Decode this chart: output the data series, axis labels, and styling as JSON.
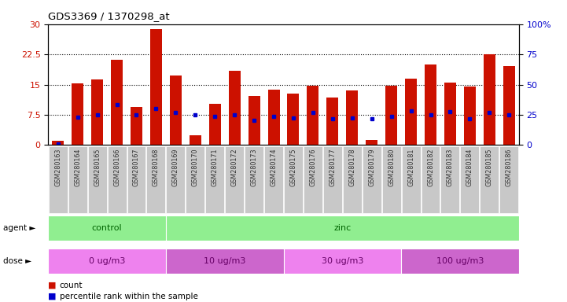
{
  "title": "GDS3369 / 1370298_at",
  "samples": [
    "GSM280163",
    "GSM280164",
    "GSM280165",
    "GSM280166",
    "GSM280167",
    "GSM280168",
    "GSM280169",
    "GSM280170",
    "GSM280171",
    "GSM280172",
    "GSM280173",
    "GSM280174",
    "GSM280175",
    "GSM280176",
    "GSM280177",
    "GSM280178",
    "GSM280179",
    "GSM280180",
    "GSM280181",
    "GSM280182",
    "GSM280183",
    "GSM280184",
    "GSM280185",
    "GSM280186"
  ],
  "count_values": [
    1.0,
    15.2,
    16.2,
    21.2,
    9.5,
    28.7,
    17.2,
    2.5,
    10.3,
    18.5,
    12.2,
    13.8,
    12.7,
    14.8,
    11.8,
    13.5,
    1.2,
    14.7,
    16.5,
    20.0,
    15.5,
    14.5,
    22.5,
    19.5
  ],
  "percentile_values": [
    0.3,
    6.9,
    7.5,
    10.0,
    7.5,
    9.0,
    8.0,
    7.5,
    7.0,
    7.5,
    6.2,
    7.0,
    6.8,
    8.0,
    6.5,
    6.8,
    6.5,
    7.0,
    8.5,
    7.5,
    8.2,
    6.5,
    8.0,
    7.5
  ],
  "bar_color": "#cc1100",
  "percentile_color": "#0000cc",
  "ylim_left": [
    0,
    30
  ],
  "ylim_right": [
    0,
    100
  ],
  "yticks_left": [
    0,
    7.5,
    15,
    22.5,
    30
  ],
  "ytick_labels_left": [
    "0",
    "7.5",
    "15",
    "22.5",
    "30"
  ],
  "yticks_right": [
    0,
    25,
    50,
    75,
    100
  ],
  "ytick_labels_right": [
    "0",
    "25",
    "50",
    "75",
    "100%"
  ],
  "agent_groups": [
    {
      "label": "control",
      "start": 0,
      "end": 6,
      "color": "#90ee90"
    },
    {
      "label": "zinc",
      "start": 6,
      "end": 24,
      "color": "#90ee90"
    }
  ],
  "dose_groups": [
    {
      "label": "0 ug/m3",
      "start": 0,
      "end": 6,
      "color": "#ee82ee"
    },
    {
      "label": "10 ug/m3",
      "start": 6,
      "end": 12,
      "color": "#cc66cc"
    },
    {
      "label": "30 ug/m3",
      "start": 12,
      "end": 18,
      "color": "#ee82ee"
    },
    {
      "label": "100 ug/m3",
      "start": 18,
      "end": 24,
      "color": "#cc66cc"
    }
  ],
  "tick_bg_color": "#c8c8c8",
  "tick_text_color": "#333333",
  "agent_text_color": "#006400",
  "dose_text_color": "#660066"
}
